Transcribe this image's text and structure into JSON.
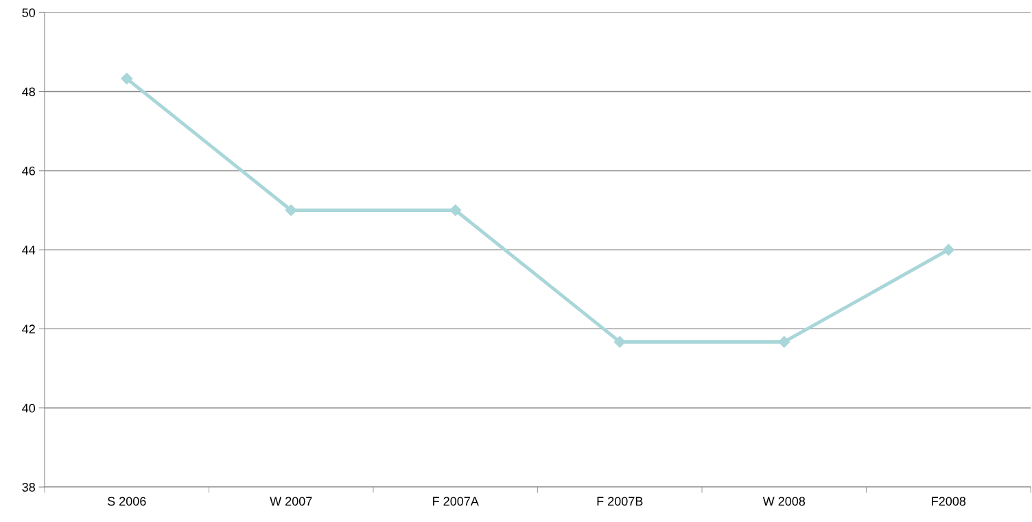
{
  "chart_data": {
    "type": "line",
    "categories": [
      "S 2006",
      "W 2007",
      "F 2007A",
      "F 2007B",
      "W 2008",
      "F2008"
    ],
    "series": [
      {
        "color": "#a8d6d9",
        "values": [
          48.33,
          45,
          45,
          41.67,
          41.67,
          44
        ]
      }
    ],
    "ylim": [
      38,
      50
    ],
    "yticks": [
      38,
      40,
      42,
      44,
      46,
      48,
      50
    ],
    "grid": "y",
    "marker": "diamond",
    "line_style": "solid",
    "legend": false
  }
}
